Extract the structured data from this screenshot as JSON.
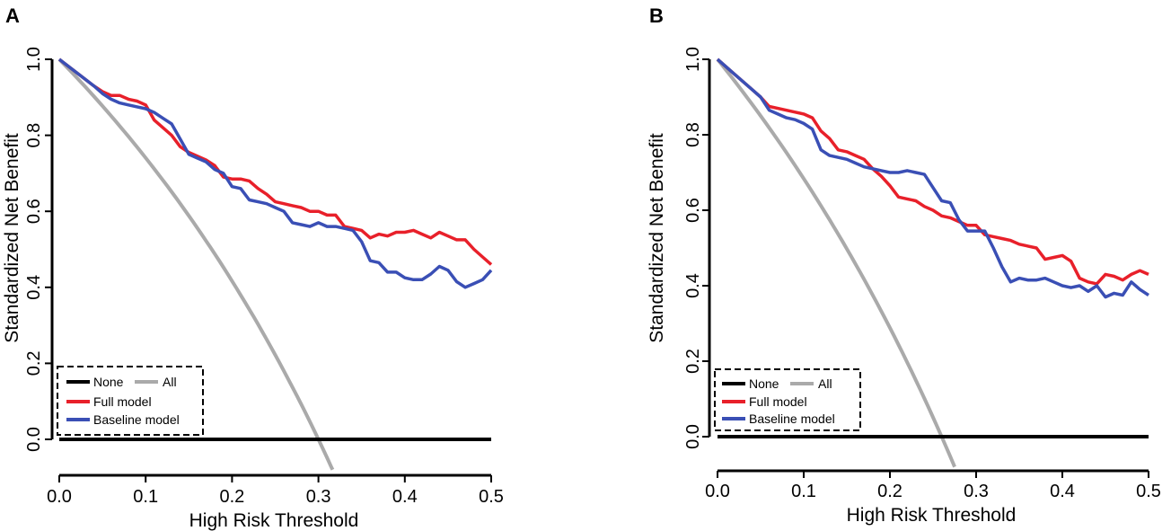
{
  "chart_data": [
    {
      "type": "line",
      "panel_label": "A",
      "xlabel": "High Risk Threshold",
      "ylabel": "Standardized Net Benefit",
      "xlim": [
        0,
        0.5
      ],
      "ylim": [
        -0.08,
        1.0
      ],
      "x_ticks": [
        "0.0",
        "0.1",
        "0.2",
        "0.3",
        "0.4",
        "0.5"
      ],
      "y_ticks": [
        "0.0",
        "0.2",
        "0.4",
        "0.6",
        "0.8",
        "1.0"
      ],
      "legend": {
        "placement": "bottom-left",
        "entries": {
          "none": "None",
          "all": "All",
          "full": "Full model",
          "baseline": "Baseline model"
        }
      },
      "prevalence": 0.3,
      "colors": {
        "none": "#000000",
        "all": "#aaaaaa",
        "full": "#e8202a",
        "baseline": "#3a4fb5"
      },
      "series": [
        {
          "key": "none",
          "name": "None",
          "x": [
            0,
            0.5
          ],
          "y": [
            0,
            0
          ]
        },
        {
          "key": "full",
          "name": "Full model",
          "x": [
            0,
            0.02,
            0.04,
            0.05,
            0.06,
            0.07,
            0.08,
            0.09,
            0.1,
            0.11,
            0.12,
            0.13,
            0.14,
            0.15,
            0.16,
            0.17,
            0.18,
            0.19,
            0.2,
            0.21,
            0.22,
            0.23,
            0.24,
            0.25,
            0.26,
            0.27,
            0.28,
            0.29,
            0.3,
            0.31,
            0.32,
            0.33,
            0.34,
            0.35,
            0.36,
            0.37,
            0.38,
            0.39,
            0.4,
            0.41,
            0.42,
            0.43,
            0.44,
            0.45,
            0.46,
            0.47,
            0.48,
            0.49,
            0.5
          ],
          "y": [
            1.0,
            0.965,
            0.93,
            0.915,
            0.905,
            0.905,
            0.895,
            0.89,
            0.88,
            0.84,
            0.82,
            0.8,
            0.77,
            0.755,
            0.745,
            0.735,
            0.72,
            0.69,
            0.685,
            0.685,
            0.68,
            0.66,
            0.645,
            0.625,
            0.62,
            0.615,
            0.61,
            0.6,
            0.6,
            0.59,
            0.59,
            0.56,
            0.555,
            0.55,
            0.53,
            0.54,
            0.535,
            0.545,
            0.545,
            0.55,
            0.54,
            0.53,
            0.545,
            0.535,
            0.525,
            0.525,
            0.5,
            0.48,
            0.46
          ]
        },
        {
          "key": "baseline",
          "name": "Baseline model",
          "x": [
            0,
            0.02,
            0.04,
            0.05,
            0.06,
            0.07,
            0.08,
            0.09,
            0.1,
            0.11,
            0.12,
            0.13,
            0.14,
            0.15,
            0.16,
            0.17,
            0.18,
            0.19,
            0.2,
            0.21,
            0.22,
            0.23,
            0.24,
            0.25,
            0.26,
            0.27,
            0.28,
            0.29,
            0.3,
            0.31,
            0.32,
            0.33,
            0.34,
            0.35,
            0.36,
            0.37,
            0.38,
            0.39,
            0.4,
            0.41,
            0.42,
            0.43,
            0.44,
            0.45,
            0.46,
            0.47,
            0.48,
            0.49,
            0.5
          ],
          "y": [
            1.0,
            0.965,
            0.93,
            0.91,
            0.895,
            0.885,
            0.88,
            0.875,
            0.87,
            0.86,
            0.845,
            0.83,
            0.79,
            0.75,
            0.74,
            0.73,
            0.71,
            0.7,
            0.665,
            0.66,
            0.63,
            0.625,
            0.62,
            0.61,
            0.6,
            0.57,
            0.565,
            0.56,
            0.57,
            0.56,
            0.56,
            0.555,
            0.55,
            0.52,
            0.47,
            0.465,
            0.44,
            0.44,
            0.425,
            0.42,
            0.42,
            0.435,
            0.455,
            0.445,
            0.415,
            0.4,
            0.41,
            0.42,
            0.445
          ]
        }
      ]
    },
    {
      "type": "line",
      "panel_label": "B",
      "xlabel": "High Risk Threshold",
      "ylabel": "Standardized Net Benefit",
      "xlim": [
        0,
        0.5
      ],
      "ylim": [
        -0.08,
        1.0
      ],
      "x_ticks": [
        "0.0",
        "0.1",
        "0.2",
        "0.3",
        "0.4",
        "0.5"
      ],
      "y_ticks": [
        "0.0",
        "0.2",
        "0.4",
        "0.6",
        "0.8",
        "1.0"
      ],
      "legend": {
        "placement": "bottom-left",
        "entries": {
          "none": "None",
          "all": "All",
          "full": "Full model",
          "baseline": "Baseline model"
        }
      },
      "prevalence": 0.26,
      "colors": {
        "none": "#000000",
        "all": "#aaaaaa",
        "full": "#e8202a",
        "baseline": "#3a4fb5"
      },
      "series": [
        {
          "key": "none",
          "name": "None",
          "x": [
            0,
            0.5
          ],
          "y": [
            0,
            0
          ]
        },
        {
          "key": "full",
          "name": "Full model",
          "x": [
            0,
            0.02,
            0.04,
            0.05,
            0.06,
            0.07,
            0.08,
            0.09,
            0.1,
            0.11,
            0.12,
            0.13,
            0.14,
            0.15,
            0.16,
            0.17,
            0.18,
            0.19,
            0.2,
            0.21,
            0.22,
            0.23,
            0.24,
            0.25,
            0.26,
            0.27,
            0.28,
            0.29,
            0.3,
            0.31,
            0.32,
            0.33,
            0.34,
            0.35,
            0.36,
            0.37,
            0.38,
            0.39,
            0.4,
            0.41,
            0.42,
            0.43,
            0.44,
            0.45,
            0.46,
            0.47,
            0.48,
            0.49,
            0.5
          ],
          "y": [
            1.0,
            0.96,
            0.92,
            0.9,
            0.875,
            0.87,
            0.865,
            0.86,
            0.855,
            0.845,
            0.81,
            0.79,
            0.76,
            0.755,
            0.745,
            0.735,
            0.71,
            0.69,
            0.665,
            0.635,
            0.63,
            0.625,
            0.61,
            0.6,
            0.585,
            0.58,
            0.57,
            0.56,
            0.56,
            0.535,
            0.53,
            0.525,
            0.52,
            0.51,
            0.505,
            0.5,
            0.47,
            0.475,
            0.48,
            0.465,
            0.42,
            0.41,
            0.405,
            0.43,
            0.425,
            0.415,
            0.43,
            0.44,
            0.43
          ]
        },
        {
          "key": "baseline",
          "name": "Baseline model",
          "x": [
            0,
            0.02,
            0.04,
            0.05,
            0.06,
            0.07,
            0.08,
            0.09,
            0.1,
            0.11,
            0.12,
            0.13,
            0.14,
            0.15,
            0.16,
            0.17,
            0.18,
            0.19,
            0.2,
            0.21,
            0.22,
            0.23,
            0.24,
            0.25,
            0.26,
            0.27,
            0.28,
            0.29,
            0.3,
            0.31,
            0.32,
            0.33,
            0.34,
            0.35,
            0.36,
            0.37,
            0.38,
            0.39,
            0.4,
            0.41,
            0.42,
            0.43,
            0.44,
            0.45,
            0.46,
            0.47,
            0.48,
            0.49,
            0.5
          ],
          "y": [
            1.0,
            0.96,
            0.92,
            0.9,
            0.865,
            0.855,
            0.845,
            0.84,
            0.83,
            0.815,
            0.76,
            0.745,
            0.74,
            0.735,
            0.725,
            0.715,
            0.71,
            0.705,
            0.7,
            0.7,
            0.705,
            0.7,
            0.695,
            0.66,
            0.625,
            0.62,
            0.575,
            0.545,
            0.545,
            0.545,
            0.5,
            0.45,
            0.41,
            0.42,
            0.415,
            0.415,
            0.42,
            0.41,
            0.4,
            0.395,
            0.4,
            0.385,
            0.4,
            0.37,
            0.38,
            0.375,
            0.41,
            0.39,
            0.375
          ]
        }
      ]
    }
  ]
}
